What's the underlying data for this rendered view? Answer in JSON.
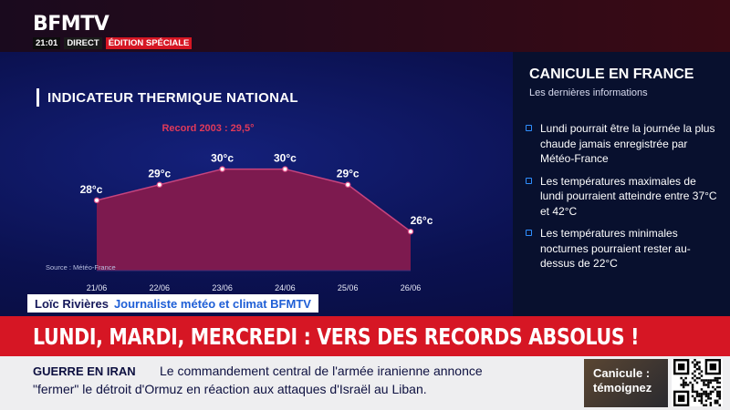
{
  "header": {
    "logo": "BFMTV",
    "time": "21:01",
    "direct": "DIRECT",
    "edition": "ÉDITION SPÉCIALE"
  },
  "chart": {
    "title": "INDICATEUR THERMIQUE NATIONAL",
    "record_label": "Record 2003 : 29,5°",
    "source": "Source : Météo-France"
  },
  "chart_data": {
    "type": "area",
    "title": "INDICATEUR THERMIQUE NATIONAL",
    "categories": [
      "21/06",
      "22/06",
      "23/06",
      "24/06",
      "25/06",
      "26/06"
    ],
    "values": [
      28,
      29,
      30,
      30,
      29,
      26
    ],
    "value_labels": [
      "28°c",
      "29°c",
      "30°c",
      "30°c",
      "29°c",
      "26°c"
    ],
    "ylim": [
      23.5,
      30.5
    ],
    "annotation": "Record 2003 : 29,5°",
    "grid": false,
    "fill_color": "#7d1a4f",
    "line_color": "#c7447e"
  },
  "info_panel": {
    "title": "CANICULE EN FRANCE",
    "subtitle": "Les dernières informations",
    "items": [
      "Lundi pourrait être la journée la plus chaude jamais enregistrée par Météo-France",
      "Les températures maximales de lundi pourraient atteindre entre 37°C et 42°C",
      "Les températures minimales nocturnes pourraient rester au-dessus de 22°C"
    ]
  },
  "name_strap": {
    "name": "Loïc Rivières",
    "role": "Journaliste météo et climat BFMTV"
  },
  "headline": "LUNDI, MARDI, MERCREDI : VERS DES RECORDS ABSOLUS !",
  "ticker": {
    "tag": "GUERRE EN IRAN",
    "line1": "Le commandement central de l'armée iranienne annonce",
    "line2": "\"fermer\" le détroit d'Ormuz en réaction aux attaques d'Israël au Liban."
  },
  "promo": {
    "text": "Canicule : témoignez"
  },
  "colors": {
    "accent_red": "#d61624",
    "panel_blue": "#0b1150",
    "bullet_blue": "#2f8fff"
  }
}
